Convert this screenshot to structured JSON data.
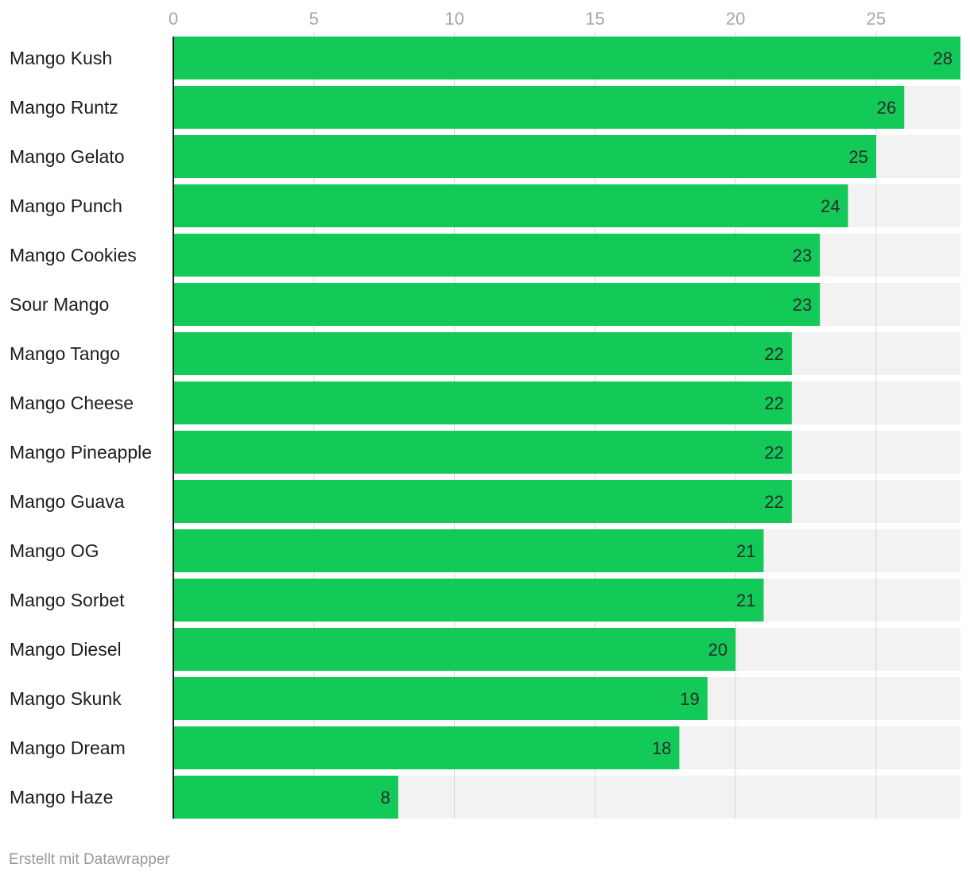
{
  "chart_data": {
    "type": "bar",
    "orientation": "horizontal",
    "categories": [
      "Mango Kush",
      "Mango Runtz",
      "Mango Gelato",
      "Mango Punch",
      "Mango Cookies",
      "Sour Mango",
      "Mango Tango",
      "Mango Cheese",
      "Mango Pineapple",
      "Mango Guava",
      "Mango OG",
      "Mango Sorbet",
      "Mango Diesel",
      "Mango Skunk",
      "Mango Dream",
      "Mango Haze"
    ],
    "values": [
      28,
      26,
      25,
      24,
      23,
      23,
      22,
      22,
      22,
      22,
      21,
      21,
      20,
      19,
      18,
      8
    ],
    "xlim": [
      0,
      28
    ],
    "x_ticks": [
      0,
      5,
      10,
      15,
      20,
      25
    ],
    "tick_labels": [
      "0",
      "5",
      "10",
      "15",
      "20",
      "25"
    ],
    "value_labels": [
      "28",
      "26",
      "25",
      "24",
      "23",
      "23",
      "22",
      "22",
      "22",
      "22",
      "21",
      "21",
      "20",
      "19",
      "18",
      "8"
    ],
    "axis_position": "top",
    "grid": true,
    "bar_background": true,
    "colors": {
      "bar": "#13c957",
      "bar_background": "#f2f2f2",
      "grid": "#d9d9d9",
      "axis_line": "#1a1a1a"
    }
  },
  "footer": {
    "credit": "Erstellt mit Datawrapper"
  }
}
